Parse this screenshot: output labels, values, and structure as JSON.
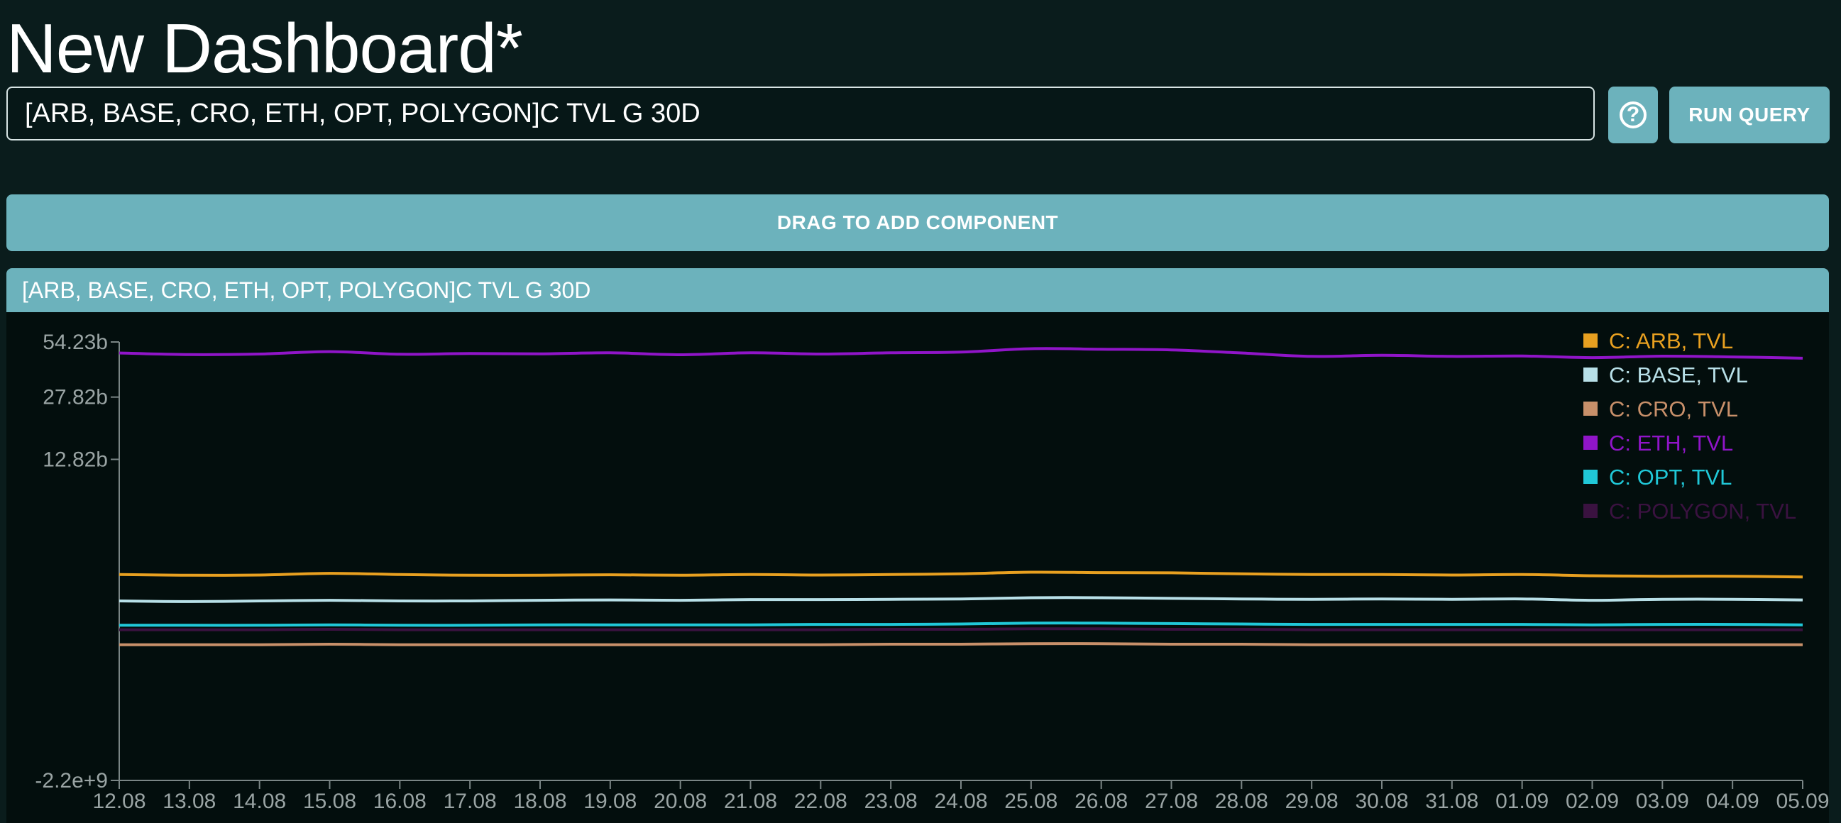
{
  "page": {
    "title": "New Dashboard*"
  },
  "query": {
    "value": "[ARB, BASE, CRO, ETH, OPT, POLYGON]C TVL G 30D"
  },
  "toolbar": {
    "help_icon_glyph": "?",
    "run_label": "RUN QUERY"
  },
  "drag": {
    "label": "DRAG TO ADD COMPONENT"
  },
  "panel": {
    "title": "[ARB, BASE, CRO, ETH, OPT, POLYGON]C TVL G 30D"
  },
  "colors": {
    "background": "#0a1c1c",
    "accent": "#6cb2bc",
    "chart_bg": "#030e0d"
  },
  "chart_data": {
    "type": "line",
    "title": "",
    "xlabel": "",
    "ylabel": "",
    "x": [
      "12.08",
      "13.08",
      "14.08",
      "15.08",
      "16.08",
      "17.08",
      "18.08",
      "19.08",
      "20.08",
      "21.08",
      "22.08",
      "23.08",
      "24.08",
      "25.08",
      "26.08",
      "27.08",
      "28.08",
      "29.08",
      "30.08",
      "31.08",
      "01.09",
      "02.09",
      "03.09",
      "04.09",
      "05.09"
    ],
    "y_ticks": [
      {
        "value": -2200000000,
        "label": "-2.2e+9"
      },
      {
        "value": 12820000000,
        "label": "12.82b"
      },
      {
        "value": 27820000000,
        "label": "27.82b"
      },
      {
        "value": 54230000000,
        "label": "54.23b"
      }
    ],
    "y_scale": "symlog",
    "ylim": [
      -2200000000,
      54230000000
    ],
    "series": [
      {
        "name": "C: ARB, TVL",
        "color": "#e8a020",
        "values": [
          2.55,
          2.52,
          2.53,
          2.6,
          2.55,
          2.52,
          2.52,
          2.54,
          2.52,
          2.55,
          2.53,
          2.55,
          2.58,
          2.65,
          2.63,
          2.62,
          2.58,
          2.55,
          2.55,
          2.53,
          2.55,
          2.5,
          2.48,
          2.48,
          2.45
        ]
      },
      {
        "name": "C: BASE, TVL",
        "color": "#b8e0e8",
        "values": [
          1.6,
          1.58,
          1.6,
          1.62,
          1.6,
          1.6,
          1.62,
          1.63,
          1.62,
          1.64,
          1.64,
          1.65,
          1.66,
          1.7,
          1.7,
          1.68,
          1.66,
          1.65,
          1.66,
          1.65,
          1.66,
          1.62,
          1.65,
          1.65,
          1.63
        ]
      },
      {
        "name": "C: CRO, TVL",
        "color": "#c8906a",
        "values": [
          0.55,
          0.55,
          0.55,
          0.56,
          0.55,
          0.55,
          0.55,
          0.55,
          0.55,
          0.55,
          0.55,
          0.56,
          0.56,
          0.57,
          0.57,
          0.56,
          0.56,
          0.55,
          0.55,
          0.55,
          0.55,
          0.55,
          0.55,
          0.55,
          0.55
        ]
      },
      {
        "name": "C: ETH, TVL",
        "color": "#9015c8",
        "values": [
          47.5,
          46.6,
          46.9,
          48.3,
          46.8,
          47.2,
          47.0,
          47.6,
          46.5,
          47.6,
          46.9,
          47.6,
          48.0,
          50.0,
          49.7,
          49.3,
          47.5,
          45.6,
          46.2,
          45.6,
          45.8,
          44.9,
          45.7,
          45.3,
          44.6
        ]
      },
      {
        "name": "C: OPT, TVL",
        "color": "#20c8d8",
        "values": [
          0.95,
          0.95,
          0.95,
          0.96,
          0.95,
          0.95,
          0.96,
          0.96,
          0.96,
          0.96,
          0.97,
          0.97,
          0.98,
          1.0,
          1.0,
          0.99,
          0.98,
          0.97,
          0.97,
          0.97,
          0.97,
          0.96,
          0.97,
          0.97,
          0.96
        ]
      },
      {
        "name": "C: POLYGON, TVL",
        "color": "#3a1240",
        "values": [
          0.85,
          0.85,
          0.85,
          0.86,
          0.85,
          0.85,
          0.85,
          0.85,
          0.85,
          0.85,
          0.85,
          0.86,
          0.86,
          0.87,
          0.87,
          0.86,
          0.86,
          0.85,
          0.85,
          0.85,
          0.85,
          0.85,
          0.85,
          0.85,
          0.85
        ]
      }
    ],
    "values_unit": "billions",
    "legend": "top-right",
    "grid": false
  }
}
